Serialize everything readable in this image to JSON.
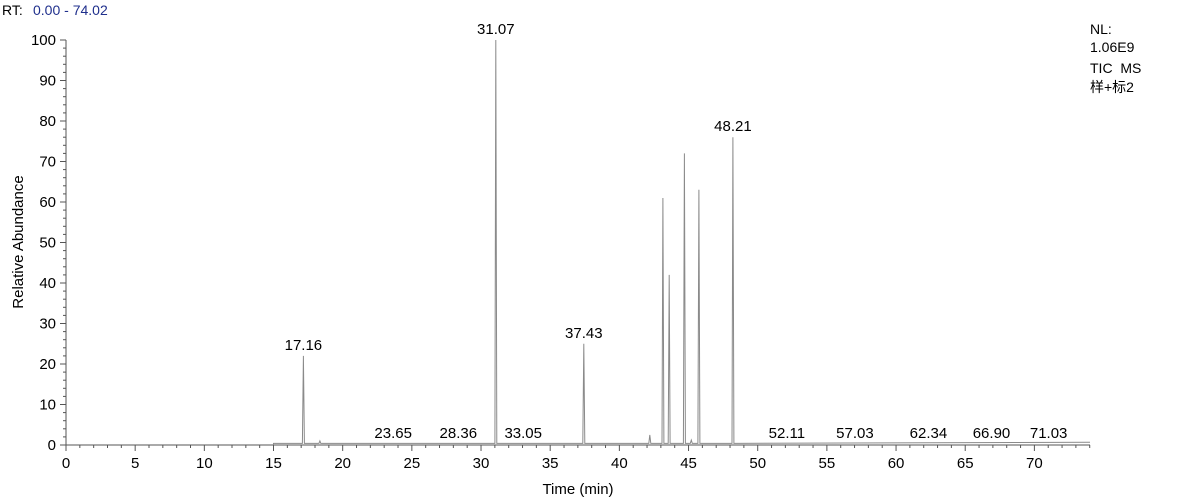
{
  "header": {
    "rt_prefix": "RT:",
    "rt_range": "0.00 - 74.02"
  },
  "info": {
    "nl_label": "NL:",
    "nl_value": "1.06E9",
    "scan_filter": "TIC  MS",
    "sample_name": "样+标2"
  },
  "chart_data": {
    "type": "line",
    "xlabel": "Time (min)",
    "ylabel": "Relative Abundance",
    "xlim": [
      0,
      74.02
    ],
    "ylim": [
      0,
      100
    ],
    "x_ticks": [
      0,
      5,
      10,
      15,
      20,
      25,
      30,
      35,
      40,
      45,
      50,
      55,
      60,
      65,
      70
    ],
    "y_ticks": [
      0,
      10,
      20,
      30,
      40,
      50,
      60,
      70,
      80,
      90,
      100
    ],
    "trace_start": 15.0,
    "baseline": 0.4,
    "peaks": [
      {
        "x": 17.16,
        "y": 22,
        "label": "17.16"
      },
      {
        "x": 18.35,
        "y": 1.0,
        "label": ""
      },
      {
        "x": 31.07,
        "y": 100,
        "label": "31.07"
      },
      {
        "x": 37.43,
        "y": 25,
        "label": "37.43"
      },
      {
        "x": 42.2,
        "y": 2.5,
        "label": ""
      },
      {
        "x": 43.15,
        "y": 61,
        "label": ""
      },
      {
        "x": 43.6,
        "y": 42,
        "label": ""
      },
      {
        "x": 44.7,
        "y": 72,
        "label": ""
      },
      {
        "x": 45.2,
        "y": 1.2,
        "label": ""
      },
      {
        "x": 45.75,
        "y": 63,
        "label": ""
      },
      {
        "x": 48.21,
        "y": 76,
        "label": "48.21"
      }
    ],
    "minor_labels": [
      {
        "x": 23.65,
        "label": "23.65"
      },
      {
        "x": 28.36,
        "label": "28.36"
      },
      {
        "x": 33.05,
        "label": "33.05"
      },
      {
        "x": 52.11,
        "label": "52.11"
      },
      {
        "x": 57.03,
        "label": "57.03"
      },
      {
        "x": 62.34,
        "label": "62.34"
      },
      {
        "x": 66.9,
        "label": "66.90"
      },
      {
        "x": 71.03,
        "label": "71.03"
      }
    ]
  }
}
